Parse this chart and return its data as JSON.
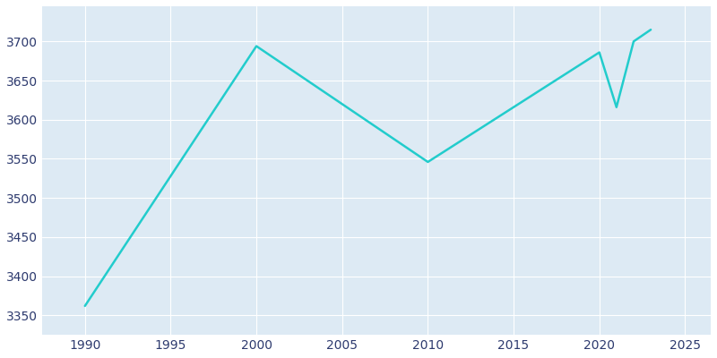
{
  "years": [
    1990,
    2000,
    2010,
    2020,
    2021,
    2022,
    2023
  ],
  "population": [
    3362,
    3694,
    3546,
    3686,
    3616,
    3700,
    3715
  ],
  "line_color": "#22CCCC",
  "figure_bg_color": "#ffffff",
  "plot_bg_color": "#ddeaf4",
  "grid_color": "#ffffff",
  "tick_label_color": "#2d3a6e",
  "xlim": [
    1987.5,
    2026.5
  ],
  "ylim": [
    3325,
    3745
  ],
  "yticks": [
    3350,
    3400,
    3450,
    3500,
    3550,
    3600,
    3650,
    3700
  ],
  "xticks": [
    1990,
    1995,
    2000,
    2005,
    2010,
    2015,
    2020,
    2025
  ],
  "line_width": 1.8,
  "figsize": [
    8.0,
    4.0
  ],
  "dpi": 100
}
